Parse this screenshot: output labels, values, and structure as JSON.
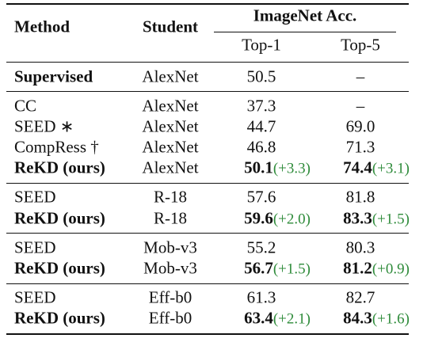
{
  "table": {
    "header": {
      "method": "Method",
      "student": "Student",
      "group": "ImageNet Acc.",
      "top1": "Top-1",
      "top5": "Top-5"
    },
    "groups": [
      {
        "rows": [
          {
            "method": "Supervised",
            "emphasis": true,
            "student": "AlexNet",
            "top1": "50.5",
            "top5": "–"
          }
        ]
      },
      {
        "rows": [
          {
            "method": "CC",
            "student": "AlexNet",
            "top1": "37.3",
            "top5": "–"
          },
          {
            "method": "SEED ∗",
            "student": "AlexNet",
            "top1": "44.7",
            "top5": "69.0"
          },
          {
            "method": "CompRess †",
            "student": "AlexNet",
            "top1": "46.8",
            "top5": "71.3"
          },
          {
            "method": "ReKD (ours)",
            "emphasis": true,
            "student": "AlexNet",
            "top1": "50.1",
            "top1_gain": "(+3.3)",
            "top5": "74.4",
            "top5_gain": "(+3.1)"
          }
        ]
      },
      {
        "rows": [
          {
            "method": "SEED",
            "student": "R-18",
            "top1": "57.6",
            "top5": "81.8"
          },
          {
            "method": "ReKD (ours)",
            "emphasis": true,
            "student": "R-18",
            "top1": "59.6",
            "top1_gain": "(+2.0)",
            "top5": "83.3",
            "top5_gain": "(+1.5)"
          }
        ]
      },
      {
        "rows": [
          {
            "method": "SEED",
            "student": "Mob-v3",
            "top1": "55.2",
            "top5": "80.3"
          },
          {
            "method": "ReKD (ours)",
            "emphasis": true,
            "student": "Mob-v3",
            "top1": "56.7",
            "top1_gain": "(+1.5)",
            "top5": "81.2",
            "top5_gain": "(+0.9)"
          }
        ]
      },
      {
        "rows": [
          {
            "method": "SEED",
            "student": "Eff-b0",
            "top1": "61.3",
            "top5": "82.7"
          },
          {
            "method": "ReKD (ours)",
            "emphasis": true,
            "student": "Eff-b0",
            "top1": "63.4",
            "top1_gain": "(+2.1)",
            "top5": "84.3",
            "top5_gain": "(+1.6)"
          }
        ]
      }
    ]
  }
}
